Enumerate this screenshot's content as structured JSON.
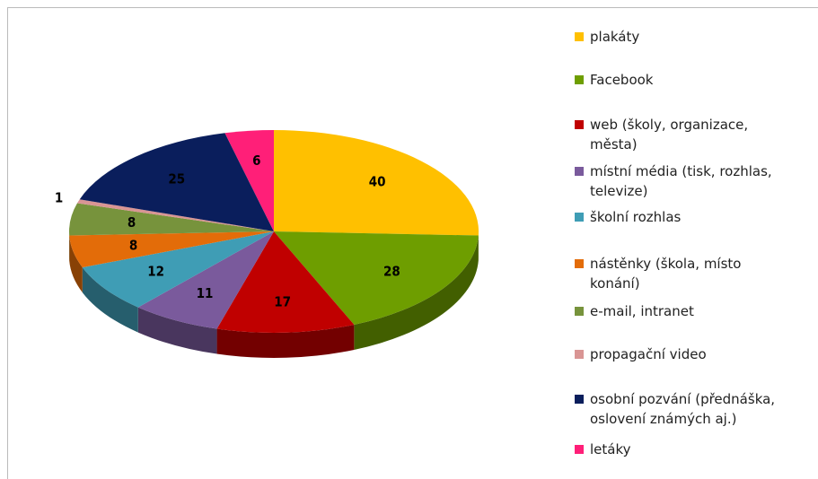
{
  "chart_data": {
    "type": "pie3d",
    "categories": [
      "plakáty",
      "Facebook",
      "web (školy, organizace, města)",
      "místní média (tisk, rozhlas, televize)",
      "školní rozhlas",
      "nástěnky (škola, místo konání)",
      "e-mail, intranet",
      "propagační video",
      "osobní pozvání (přednáška, oslovení známých aj.)",
      "letáky"
    ],
    "values": [
      40,
      28,
      17,
      11,
      12,
      8,
      8,
      1,
      25,
      6
    ],
    "colors": [
      "#FFC000",
      "#6E9E00",
      "#C00000",
      "#7A5A9C",
      "#3F9DB5",
      "#E36C09",
      "#77933C",
      "#D99594",
      "#0A1E5C",
      "#FF1F78"
    ]
  }
}
